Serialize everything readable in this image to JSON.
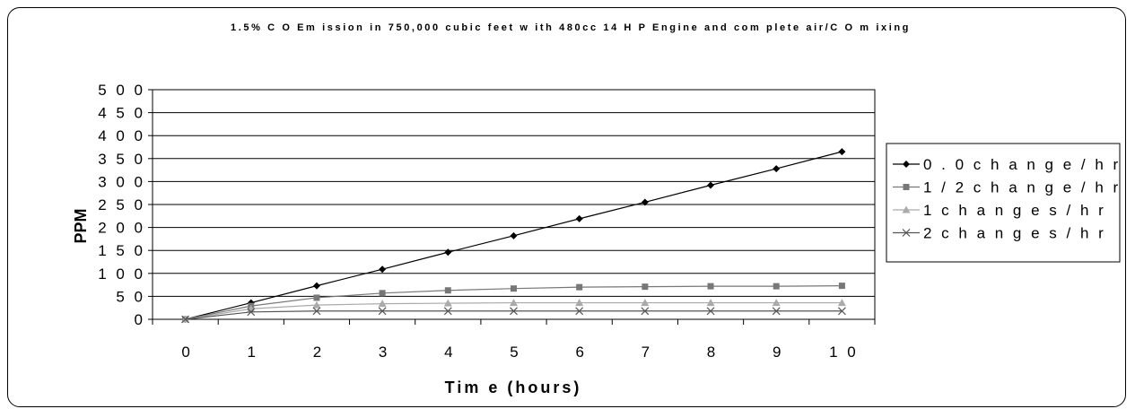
{
  "chart_data": {
    "type": "line",
    "title": "1.5% C O Em ission in 750,000 cubic feet w ith 480cc 14 H P Engine and com plete air/C O m ixing",
    "xlabel": "Tim e (hours)",
    "ylabel": "PPM",
    "x": [
      0,
      1,
      2,
      3,
      4,
      5,
      6,
      7,
      8,
      9,
      10
    ],
    "x_tick_labels": [
      "0",
      "1",
      "2",
      "3",
      "4",
      "5",
      "6",
      "7",
      "8",
      "9",
      "1 0"
    ],
    "ylim": [
      0,
      500
    ],
    "y_ticks": [
      0,
      50,
      100,
      150,
      200,
      250,
      300,
      350,
      400,
      450,
      500
    ],
    "y_tick_labels": [
      "0",
      "5 0",
      "1 0 0",
      "1 5 0",
      "2 0 0",
      "2 5 0",
      "3 0 0",
      "3 5 0",
      "4 0 0",
      "4 5 0",
      "5 0 0"
    ],
    "grid": "horizontal",
    "legend_position": "right",
    "series": [
      {
        "name": "0.0 change/hr",
        "legend_label": "0 . 0  c h a n g e / h r",
        "marker": "diamond",
        "color": "#000000",
        "values": [
          0,
          36,
          73,
          109,
          146,
          182,
          219,
          255,
          292,
          328,
          365
        ]
      },
      {
        "name": "1/2 change/hr",
        "legend_label": "1 / 2  c h a n g e / h r",
        "marker": "square",
        "color": "#777777",
        "values": [
          0,
          29,
          47,
          57,
          63,
          67,
          70,
          71,
          72,
          72,
          73
        ]
      },
      {
        "name": "1 changes/hr",
        "legend_label": "1  c h a n g e s / h r",
        "marker": "triangle",
        "color": "#aaaaaa",
        "values": [
          0,
          23,
          31,
          34,
          35,
          36,
          36,
          36,
          36,
          36,
          36
        ]
      },
      {
        "name": "2 changes/hr",
        "legend_label": "2  c h a n g e s / h r",
        "marker": "x",
        "color": "#555555",
        "values": [
          0,
          16,
          18,
          18,
          18,
          18,
          18,
          18,
          18,
          18,
          18
        ]
      }
    ]
  }
}
